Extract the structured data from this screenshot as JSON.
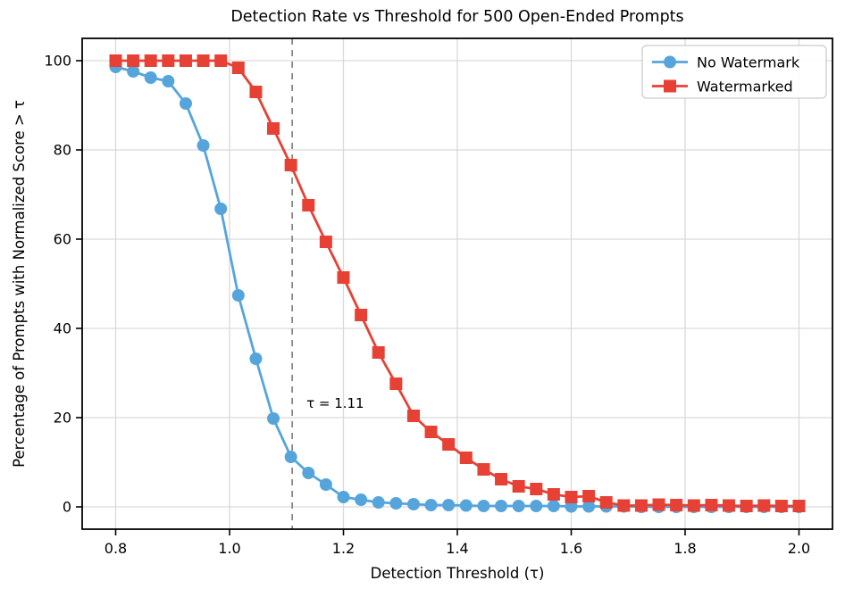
{
  "page": {
    "background": "#ffffff"
  },
  "chart_data": {
    "type": "line",
    "title": "Detection Rate vs Threshold for 500 Open-Ended Prompts",
    "xlabel": "Detection Threshold (τ)",
    "ylabel": "Percentage of Prompts with Normalized Score > τ",
    "xlim": [
      0.8,
      2.0
    ],
    "ylim": [
      0,
      100
    ],
    "x_ticks": [
      0.8,
      1.0,
      1.2,
      1.4,
      1.6,
      1.8,
      2.0
    ],
    "y_ticks": [
      0,
      20,
      40,
      60,
      80,
      100
    ],
    "grid": true,
    "legend_position": "upper right",
    "x": [
      0.8,
      0.8308,
      0.8615,
      0.8923,
      0.9231,
      0.9538,
      0.9846,
      1.0154,
      1.0462,
      1.0769,
      1.1077,
      1.1385,
      1.1692,
      1.2,
      1.2308,
      1.2615,
      1.2923,
      1.3231,
      1.3538,
      1.3846,
      1.4154,
      1.4462,
      1.4769,
      1.5077,
      1.5385,
      1.5692,
      1.6,
      1.6308,
      1.6615,
      1.6923,
      1.7231,
      1.7538,
      1.7846,
      1.8154,
      1.8462,
      1.8769,
      1.9077,
      1.9385,
      1.9692,
      2.0
    ],
    "series": [
      {
        "name": "No Watermark",
        "color": "#55A5DC",
        "marker": "circle",
        "values": [
          98.6,
          97.6,
          96.2,
          95.4,
          90.4,
          81.0,
          66.8,
          47.4,
          33.2,
          19.8,
          11.2,
          7.6,
          5.0,
          2.2,
          1.6,
          1.0,
          0.8,
          0.6,
          0.4,
          0.4,
          0.3,
          0.2,
          0.2,
          0.2,
          0.2,
          0.2,
          0.1,
          0.1,
          0.1,
          0.1,
          0.0,
          0.0,
          0.0,
          0.0,
          0.0,
          0.0,
          0.0,
          0.0,
          0.0,
          0.0
        ]
      },
      {
        "name": "Watermarked",
        "color": "#E64134",
        "marker": "square",
        "values": [
          100,
          100,
          100,
          100,
          100,
          100,
          100,
          98.4,
          93.0,
          84.8,
          76.6,
          67.6,
          59.4,
          51.4,
          43.0,
          34.6,
          27.6,
          20.4,
          16.8,
          14.0,
          11.0,
          8.4,
          6.2,
          4.6,
          4.0,
          2.8,
          2.2,
          2.4,
          1.0,
          0.3,
          0.3,
          0.5,
          0.4,
          0.3,
          0.4,
          0.3,
          0.2,
          0.3,
          0.2,
          0.2
        ]
      }
    ],
    "threshold_line": {
      "x": 1.11,
      "style": "dashed",
      "color": "#888888"
    },
    "annotation": {
      "text": "τ = 1.11",
      "x": 1.135,
      "y": 22.2
    },
    "colors": {
      "grid": "#D9D9D9",
      "spine": "#000000",
      "tick": "#000000"
    }
  }
}
